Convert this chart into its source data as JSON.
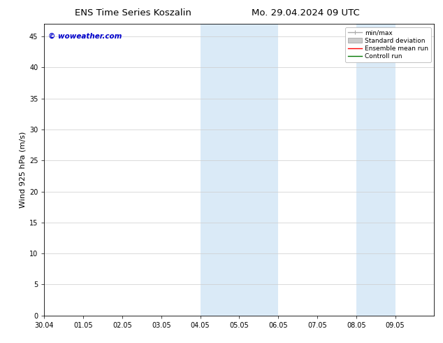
{
  "title_left": "ENS Time Series Koszalin",
  "title_right": "Mo. 29.04.2024 09 UTC",
  "ylabel": "Wind 925 hPa (m/s)",
  "watermark": "© woweather.com",
  "watermark_color": "#0000cc",
  "xlim_start": 0,
  "xlim_end": 10,
  "ylim_bottom": 0,
  "ylim_top": 47,
  "yticks": [
    0,
    5,
    10,
    15,
    20,
    25,
    30,
    35,
    40,
    45
  ],
  "xtick_labels": [
    "30.04",
    "01.05",
    "02.05",
    "03.05",
    "04.05",
    "05.05",
    "06.05",
    "07.05",
    "08.05",
    "09.05"
  ],
  "shaded_regions": [
    {
      "xmin": 4.0,
      "xmax": 5.0,
      "color": "#daeaf7"
    },
    {
      "xmin": 5.0,
      "xmax": 6.0,
      "color": "#daeaf7"
    },
    {
      "xmin": 8.0,
      "xmax": 9.0,
      "color": "#daeaf7"
    }
  ],
  "legend_entries": [
    {
      "label": "min/max",
      "color": "#aaaaaa",
      "linestyle": "-",
      "linewidth": 1.0
    },
    {
      "label": "Standard deviation",
      "color": "#cccccc",
      "linestyle": "-",
      "linewidth": 5
    },
    {
      "label": "Ensemble mean run",
      "color": "#ff0000",
      "linestyle": "-",
      "linewidth": 1.0
    },
    {
      "label": "Controll run",
      "color": "#007700",
      "linestyle": "-",
      "linewidth": 1.0
    }
  ],
  "background_color": "#ffffff",
  "plot_bg_color": "#ffffff",
  "grid_color": "#cccccc",
  "tick_fontsize": 7,
  "label_fontsize": 8,
  "title_fontsize": 9.5
}
